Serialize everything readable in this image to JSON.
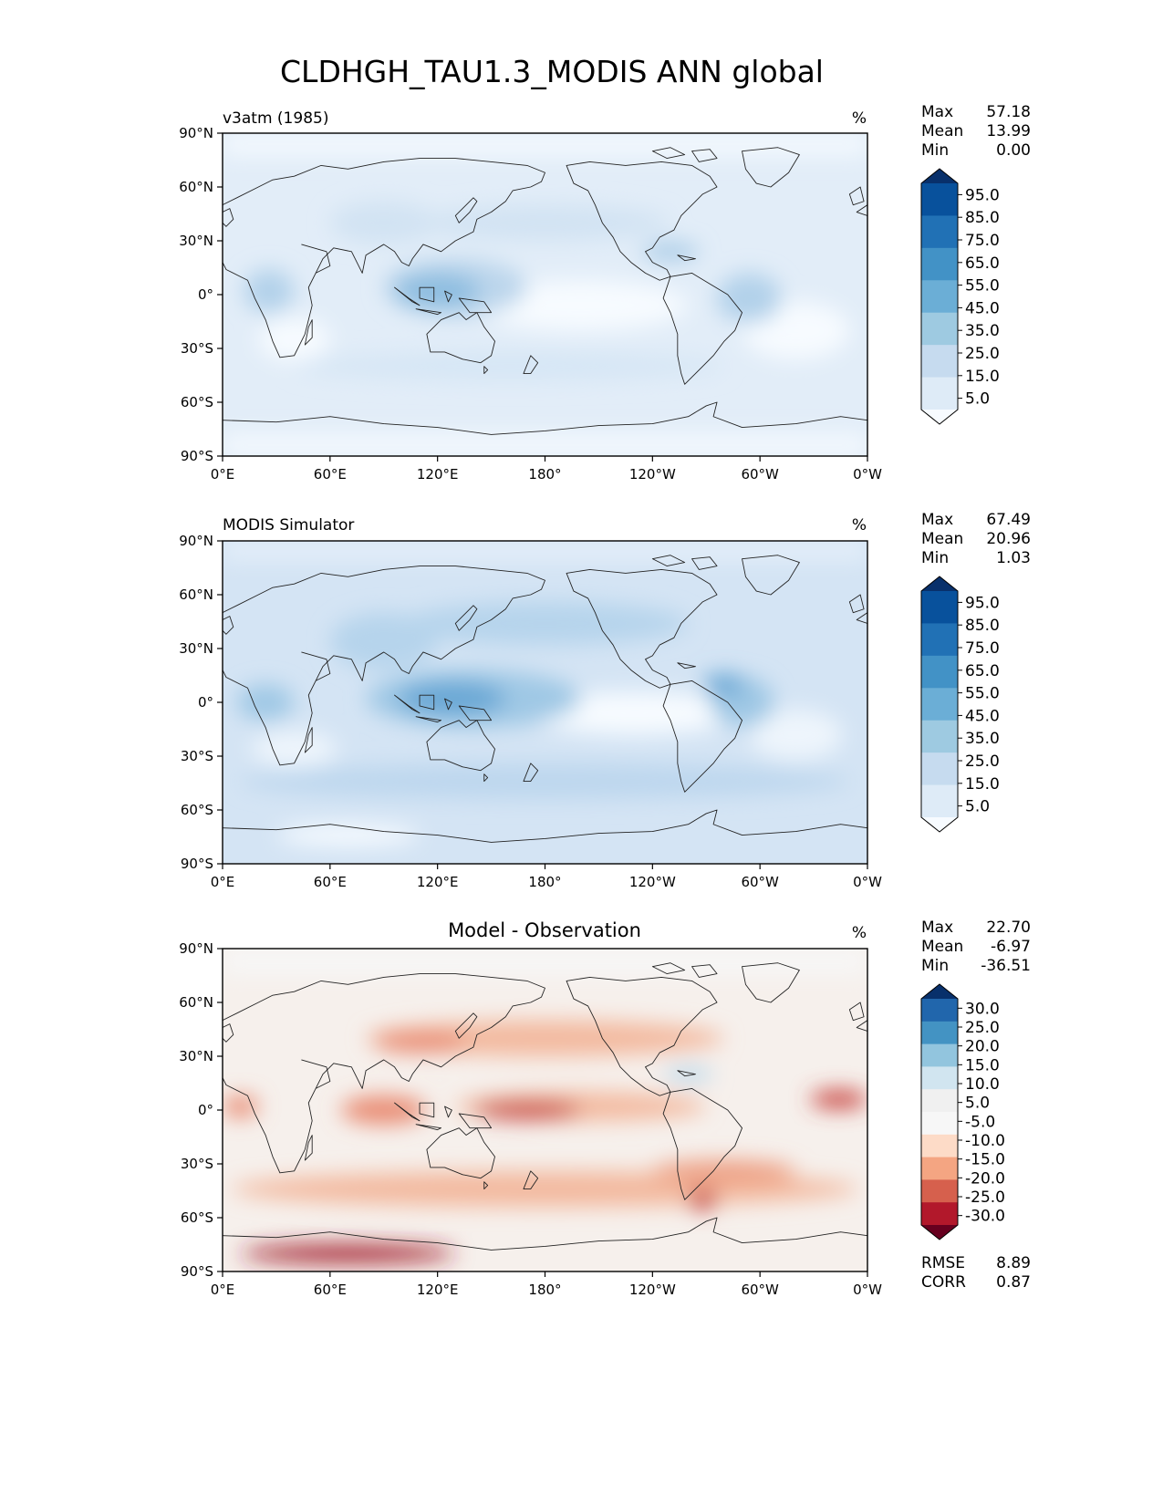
{
  "figure_title": "CLDHGH_TAU1.3_MODIS ANN global",
  "chart_data": [
    {
      "type": "heatmap",
      "title": "v3atm (1985)",
      "units": "%",
      "stats": {
        "max": "57.18",
        "mean": "13.99",
        "min": "0.00"
      },
      "stat_labels": {
        "max": "Max",
        "mean": "Mean",
        "min": "Min"
      },
      "colorbar": {
        "levels": [
          "95.0",
          "85.0",
          "75.0",
          "65.0",
          "55.0",
          "45.0",
          "35.0",
          "25.0",
          "15.0",
          "5.0"
        ],
        "colors": [
          "#08306b",
          "#08519c",
          "#2171b5",
          "#4292c6",
          "#6baed6",
          "#9ecae1",
          "#c6dbef",
          "#deebf7",
          "#f7fbff"
        ]
      },
      "x_ticks": [
        "0°E",
        "60°E",
        "120°E",
        "180°",
        "120°W",
        "60°W",
        "0°W"
      ],
      "y_ticks": [
        "90°N",
        "60°N",
        "30°N",
        "0°",
        "30°S",
        "60°S",
        "90°S"
      ],
      "xlim": [
        0,
        360
      ],
      "ylim": [
        -90,
        90
      ]
    },
    {
      "type": "heatmap",
      "title": "MODIS Simulator",
      "units": "%",
      "stats": {
        "max": "67.49",
        "mean": "20.96",
        "min": "1.03"
      },
      "stat_labels": {
        "max": "Max",
        "mean": "Mean",
        "min": "Min"
      },
      "colorbar": {
        "levels": [
          "95.0",
          "85.0",
          "75.0",
          "65.0",
          "55.0",
          "45.0",
          "35.0",
          "25.0",
          "15.0",
          "5.0"
        ],
        "colors": [
          "#08306b",
          "#08519c",
          "#2171b5",
          "#4292c6",
          "#6baed6",
          "#9ecae1",
          "#c6dbef",
          "#deebf7",
          "#f7fbff"
        ]
      },
      "x_ticks": [
        "0°E",
        "60°E",
        "120°E",
        "180°",
        "120°W",
        "60°W",
        "0°W"
      ],
      "y_ticks": [
        "90°N",
        "60°N",
        "30°N",
        "0°",
        "30°S",
        "60°S",
        "90°S"
      ],
      "xlim": [
        0,
        360
      ],
      "ylim": [
        -90,
        90
      ]
    },
    {
      "type": "heatmap",
      "title": "Model - Observation",
      "units": "%",
      "stats": {
        "max": "22.70",
        "mean": "-6.97",
        "min": "-36.51"
      },
      "stat_labels": {
        "max": "Max",
        "mean": "Mean",
        "min": "Min"
      },
      "extra_stats": {
        "rmse_label": "RMSE",
        "rmse": "8.89",
        "corr_label": "CORR",
        "corr": "0.87"
      },
      "colorbar": {
        "levels": [
          "30.0",
          "25.0",
          "20.0",
          "15.0",
          "10.0",
          "5.0",
          "-5.0",
          "-10.0",
          "-15.0",
          "-20.0",
          "-25.0",
          "-30.0"
        ],
        "colors": [
          "#08306b",
          "#2166ac",
          "#4393c3",
          "#92c5de",
          "#d1e5f0",
          "#f0f0f0",
          "#f7f7f7",
          "#fddbc7",
          "#f4a582",
          "#d6604d",
          "#b2182b",
          "#67001f"
        ]
      },
      "x_ticks": [
        "0°E",
        "60°E",
        "120°E",
        "180°",
        "120°W",
        "60°W",
        "0°W"
      ],
      "y_ticks": [
        "90°N",
        "60°N",
        "30°N",
        "0°",
        "30°S",
        "60°S",
        "90°S"
      ],
      "xlim": [
        0,
        360
      ],
      "ylim": [
        -90,
        90
      ]
    }
  ]
}
